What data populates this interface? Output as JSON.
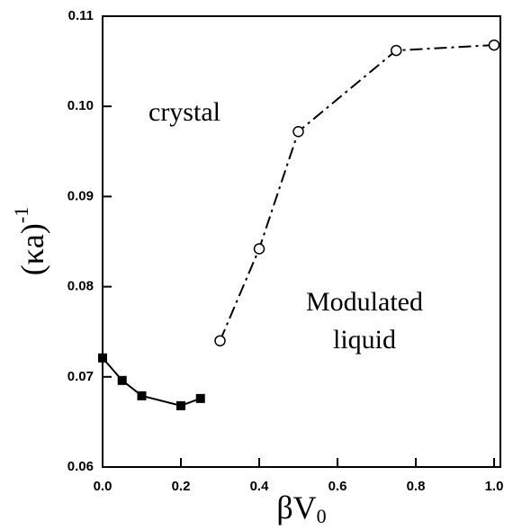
{
  "chart_data": {
    "type": "line",
    "xlabel": "βV",
    "xlabel_sub": "0",
    "ylabel": "(κa)",
    "ylabel_sup": "-1",
    "annotations": [
      "crystal",
      "Modulated",
      "liquid"
    ],
    "series": [
      {
        "x": [
          0.0,
          0.05,
          0.1,
          0.2,
          0.25
        ],
        "values": [
          0.0721,
          0.0696,
          0.0679,
          0.0668,
          0.0676
        ],
        "color": "#000000",
        "marker": "square",
        "linestyle": "solid"
      },
      {
        "x": [
          0.3,
          0.4,
          0.5,
          0.75,
          1.0
        ],
        "values": [
          0.074,
          0.0842,
          0.0972,
          0.1062,
          0.1068
        ],
        "color": "#000000",
        "marker": "circle",
        "linestyle": "dashdot"
      }
    ],
    "xlim": [
      0,
      1.0
    ],
    "xticks": [
      {
        "value": 0,
        "label": "0.0"
      },
      0.2,
      0.4,
      0.6,
      0.8,
      {
        "value": 1,
        "label": "1.0"
      }
    ],
    "ylim": [
      0.06,
      0.11
    ],
    "yticks": [
      0.06,
      0.07,
      0.08,
      0.09,
      {
        "value": 0.1,
        "label": "0.10"
      },
      0.11
    ]
  }
}
